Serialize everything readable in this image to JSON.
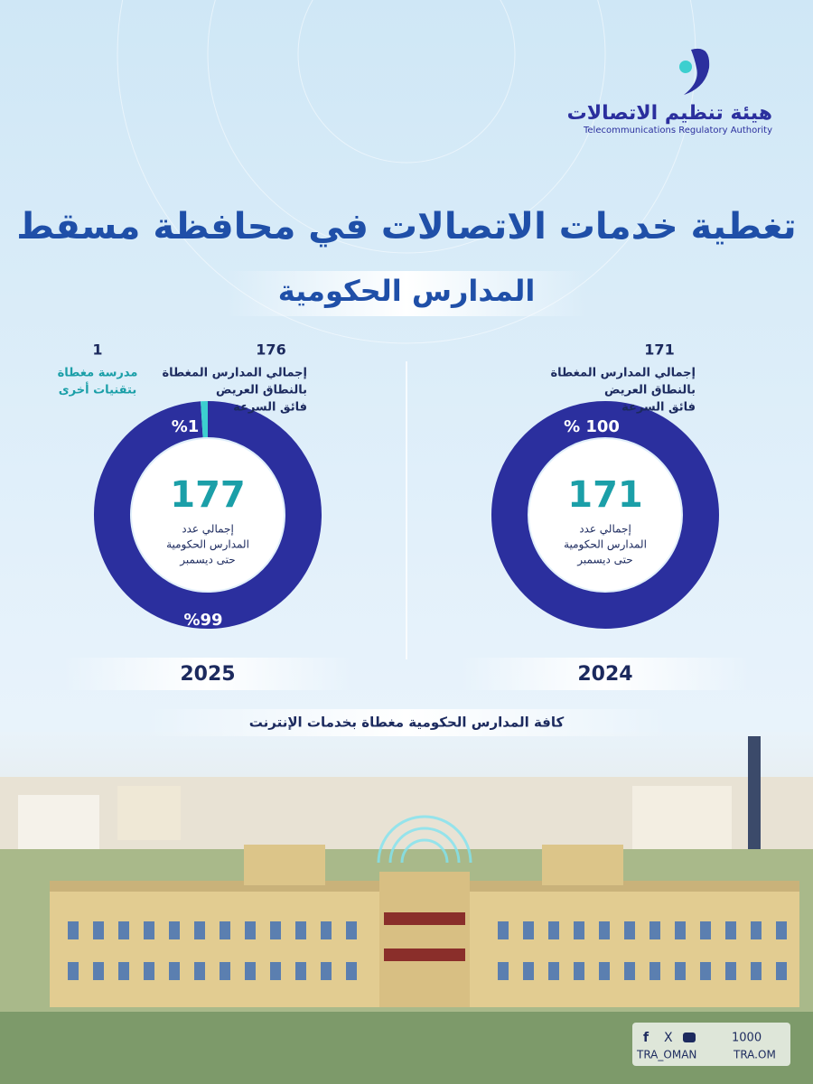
{
  "header": {
    "org_ar": "هيئة تنظيم الاتصالات",
    "org_en": "Telecommunications Regulatory Authority"
  },
  "title": "تغطية خدمات الاتصالات في محافظة مسقط",
  "subtitle": "المدارس الحكومية",
  "panels": [
    {
      "year": "2025",
      "total": 177,
      "total_lines": [
        "إجمالي عدد",
        "المدارس الحكومية",
        "حتى ديسمبر"
      ],
      "annotations": [
        {
          "value": 176,
          "lines": [
            "إجمالي المدارس المغطاة",
            "بالنطاق العريض",
            "فائق السرعة"
          ]
        },
        {
          "value": 1,
          "lines": [
            "مدرسة مغطاة",
            "بتقنيات أخرى"
          ]
        }
      ],
      "segments": [
        {
          "value": 99,
          "label": "%99",
          "color": "#2b2f9e"
        },
        {
          "value": 1,
          "label": "%1",
          "color": "#3ccfcf"
        }
      ]
    },
    {
      "year": "2024",
      "total": 171,
      "total_lines": [
        "إجمالي عدد",
        "المدارس الحكومية",
        "حتى ديسمبر"
      ],
      "annotations": [
        {
          "value": 171,
          "lines": [
            "إجمالي المدارس المغطاة",
            "بالنطاق العريض",
            "فائق السرعة"
          ]
        }
      ],
      "segments": [
        {
          "value": 100,
          "label": "% 100",
          "color": "#2b2f9e"
        }
      ]
    }
  ],
  "footer_text": "كافة المدارس الحكومية مغطاة بخدمات الإنترنت",
  "social": {
    "phone": "1000",
    "handle": "TRA_OMAN",
    "site": "TRA.OM"
  }
}
